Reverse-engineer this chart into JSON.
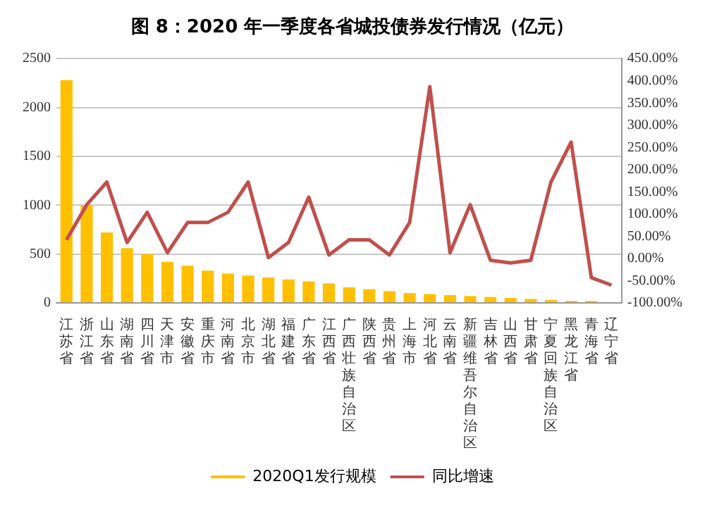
{
  "chart_data": {
    "type": "bar",
    "title": "图 8：2020 年一季度各省城投债券发行情况（亿元）",
    "categories": [
      "江苏省",
      "浙江省",
      "山东省",
      "湖南省",
      "四川省",
      "天津市",
      "安徽省",
      "重庆市",
      "河南省",
      "北京市",
      "湖北省",
      "福建省",
      "广东省",
      "江西省",
      "广西壮族自治区",
      "陕西省",
      "贵州省",
      "上海市",
      "河北省",
      "云南省",
      "新疆维吾尔自治区",
      "吉林省",
      "山西省",
      "甘肃省",
      "宁夏回族自治区",
      "黑龙江省",
      "青海省",
      "辽宁省"
    ],
    "series": [
      {
        "name": "2020Q1发行规模",
        "color": "#ffc000",
        "values": [
          2280,
          1000,
          720,
          560,
          500,
          420,
          380,
          330,
          300,
          280,
          260,
          240,
          220,
          200,
          160,
          140,
          120,
          100,
          90,
          80,
          70,
          60,
          50,
          40,
          30,
          20,
          20,
          null
        ]
      },
      {
        "name": "同比增速",
        "type": "line",
        "axis": "y2",
        "color": "#c0504d",
        "values": [
          42,
          121,
          172,
          36,
          104,
          13,
          81,
          81,
          104,
          172,
          2,
          36,
          138,
          8,
          42,
          42,
          8,
          81,
          387,
          13,
          121,
          -4,
          -10,
          -4,
          172,
          262,
          -43,
          -60
        ]
      }
    ],
    "ylim": [
      0,
      2500
    ],
    "yticks": [
      0,
      500,
      1000,
      1500,
      2000,
      2500
    ],
    "y2lim": [
      -100,
      450
    ],
    "y2ticks": [
      {
        "value": -100,
        "label": "-100.00%"
      },
      {
        "value": -50,
        "label": "-50.00%"
      },
      {
        "value": 0,
        "label": "0.00%"
      },
      {
        "value": 50,
        "label": "50.00%"
      },
      {
        "value": 100,
        "label": "100.00%"
      },
      {
        "value": 150,
        "label": "150.00%"
      },
      {
        "value": 200,
        "label": "200.00%"
      },
      {
        "value": 250,
        "label": "250.00%"
      },
      {
        "value": 300,
        "label": "300.00%"
      },
      {
        "value": 350,
        "label": "350.00%"
      },
      {
        "value": 400,
        "label": "400.00%"
      },
      {
        "value": 450,
        "label": "450.00%"
      }
    ],
    "grid": "y",
    "legend": "bottom",
    "marker": "none",
    "line_style": "solid"
  }
}
